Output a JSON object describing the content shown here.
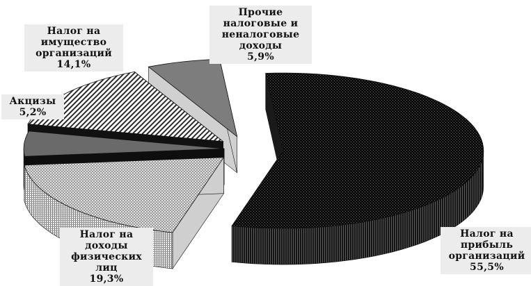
{
  "chart_data": {
    "type": "pie",
    "style": "3d-exploded",
    "title": "",
    "slices": [
      {
        "label_lines": [
          "Налог на",
          "прибыль",
          "организаций"
        ],
        "value": 55.5,
        "value_text": "55,5%",
        "pattern": "black-dots"
      },
      {
        "label_lines": [
          "Налог на",
          "доходы",
          "физических",
          "лиц"
        ],
        "value": 19.3,
        "value_text": "19,3%",
        "pattern": "gray-fine-grid"
      },
      {
        "label_lines": [
          "Акцизы"
        ],
        "value": 5.2,
        "value_text": "5,2%",
        "pattern": "dark-gray-solid"
      },
      {
        "label_lines": [
          "Налог на",
          "имущество",
          "организаций"
        ],
        "value": 14.1,
        "value_text": "14,1%",
        "pattern": "white-diagonal-stripes"
      },
      {
        "label_lines": [
          "Прочие",
          "налоговые и",
          "неналоговые",
          "доходы"
        ],
        "value": 5.9,
        "value_text": "5,9%",
        "pattern": "gray-solid"
      }
    ],
    "colors": {
      "label_bg": "#ececec",
      "text": "#111111",
      "black_slice": "#0c0c0c",
      "gray_slice": "#777777",
      "light_slice": "#cfcfcf"
    }
  }
}
